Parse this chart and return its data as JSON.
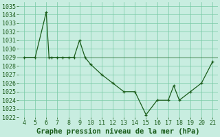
{
  "xlabel": "Graphe pression niveau de la mer (hPa)",
  "x_values": [
    4,
    5,
    6,
    6.25,
    6.5,
    7,
    7.5,
    8,
    8.5,
    9,
    9.5,
    10,
    11,
    12,
    13,
    14,
    15,
    16,
    17,
    17.5,
    18,
    19,
    20,
    21
  ],
  "y_values": [
    1029,
    1029,
    1034.3,
    1029,
    1029,
    1029,
    1029,
    1029,
    1029,
    1031,
    1029,
    1028.2,
    1027,
    1026,
    1025,
    1025,
    1022.3,
    1024,
    1024,
    1025.7,
    1024,
    1025,
    1026,
    1028.5
  ],
  "x_flat": [
    4,
    5,
    6,
    7,
    8,
    9
  ],
  "y_flat": [
    1029,
    1029,
    1029,
    1029,
    1029,
    1029
  ],
  "line_color": "#1a5c1a",
  "bg_color": "#c8ede0",
  "grid_color": "#76c9a3",
  "text_color": "#1a5c1a",
  "ylim": [
    1022,
    1035.5
  ],
  "xlim": [
    3.5,
    21.5
  ],
  "yticks": [
    1022,
    1023,
    1024,
    1025,
    1026,
    1027,
    1028,
    1029,
    1030,
    1031,
    1032,
    1033,
    1034,
    1035
  ],
  "xticks": [
    4,
    5,
    6,
    7,
    8,
    9,
    10,
    11,
    12,
    13,
    14,
    15,
    16,
    17,
    18,
    19,
    20,
    21
  ],
  "linewidth": 0.9,
  "markersize": 3.5,
  "xlabel_fontsize": 7.5,
  "tick_fontsize": 6
}
